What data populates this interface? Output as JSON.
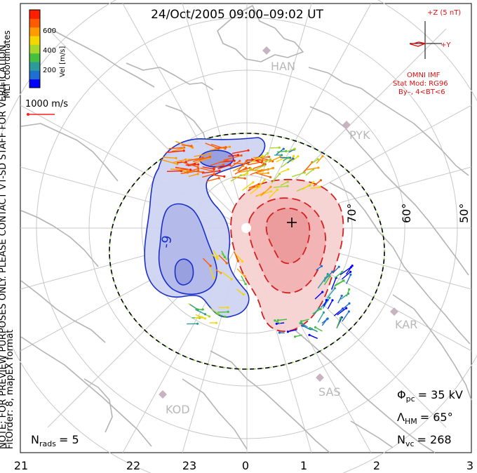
{
  "title": "24/Oct/2005 09:00–09:02 UT",
  "coord_label": "MLT coordinates",
  "colorbar": {
    "label": "Vel [m/s]",
    "ticks": [
      "600",
      "400",
      "200"
    ],
    "colors": [
      "#0000ff",
      "#1f6fd0",
      "#2e9b9b",
      "#44c03e",
      "#a8d62b",
      "#f6d600",
      "#ff9a00",
      "#ff5a00",
      "#ff1e00"
    ]
  },
  "ref_vector": {
    "label": "1000 m/s"
  },
  "imf": {
    "z_label": "+Z (5 nT)",
    "y_label": "+Y",
    "title": "OMNI IMF",
    "model_line1": "Stat Mod: RG96",
    "model_line2": "By–, 4<BT<6"
  },
  "stations": [
    "HAN",
    "PYK",
    "KAR",
    "SAS",
    "KOD"
  ],
  "lat_labels": [
    "70°",
    "60°",
    "50°"
  ],
  "contour_min_label": "-9",
  "note": "NOTE: FOR PREVIEW PURPOSES ONLY. PLEASE CONTACT VT-SD STAFF FOR VERIFICATION.",
  "fit": "FitOrder: 8, mapEX format",
  "n_rads": {
    "symbol": "N",
    "sub": "rads",
    "value": "= 5"
  },
  "phi_pc": {
    "symbol": "Φ",
    "sub": "pc",
    "value": "= 35 kV"
  },
  "lambda_hm": {
    "symbol": "Λ",
    "sub": "HM",
    "value": "= 65°"
  },
  "n_vc": {
    "symbol": "N",
    "sub": "vc",
    "value": "= 268"
  },
  "mlt_ticks": [
    "21",
    "22",
    "23",
    "0",
    "1",
    "2",
    "3"
  ],
  "colors": {
    "coast": "#b4b4b4",
    "grid": "#c8c8c8",
    "neg": "#1a2fc8",
    "pos": "#d42020",
    "imf": "#e01010"
  }
}
